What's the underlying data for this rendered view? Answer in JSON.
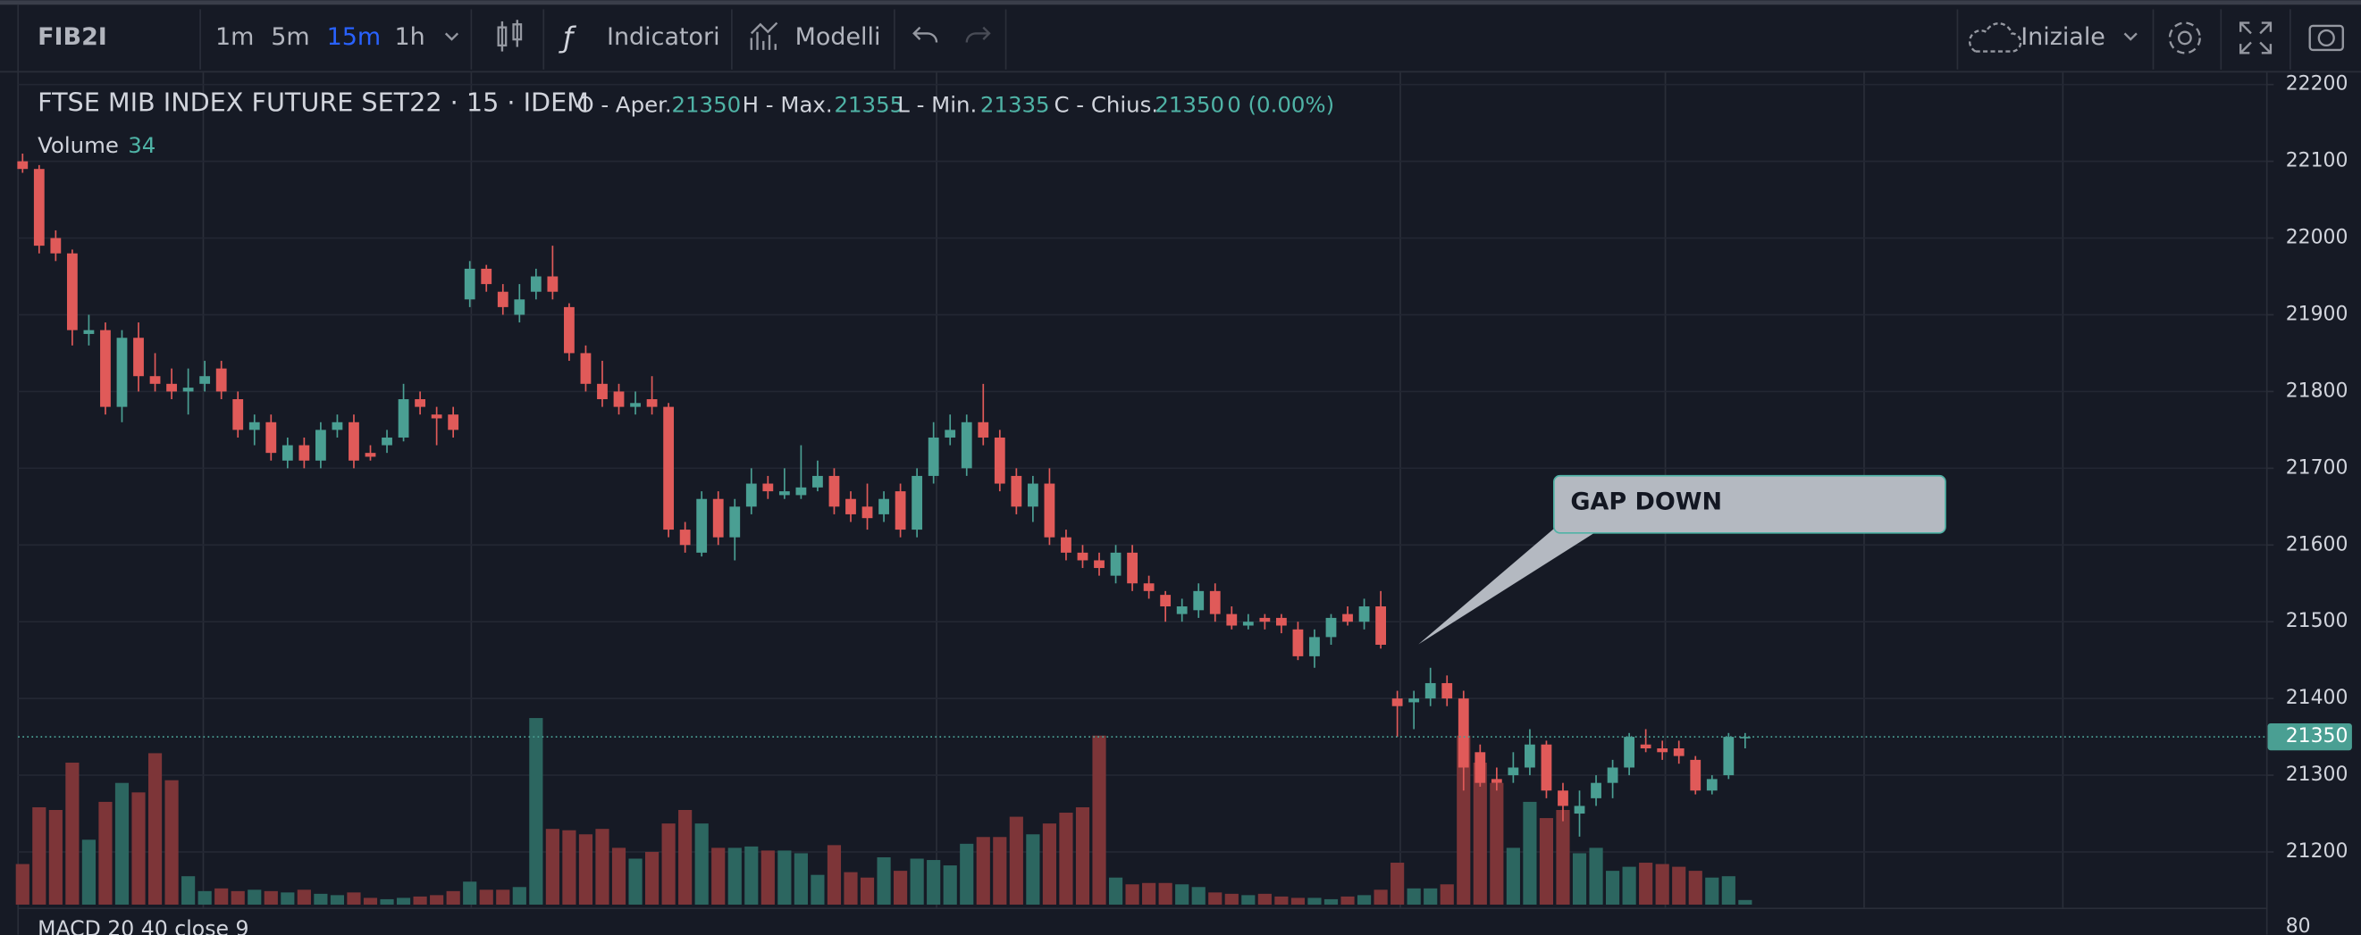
{
  "toolbar": {
    "symbol": "FIB2I",
    "intervals": [
      "1m",
      "5m",
      "15m",
      "1h"
    ],
    "active_interval": 2,
    "indicators": "Indicatori",
    "templates": "Modelli",
    "layout": "Iniziale"
  },
  "chart_data": {
    "type": "candlestick",
    "title": "FTSE MIB INDEX FUTURE SET22 · 15 · IDEM",
    "legend_labels": {
      "open": "O - Aper.",
      "high": "H - Max.",
      "low": "L - Min.",
      "close": "C - Chius.",
      "change": "0 (0.00%)"
    },
    "volume_label": "Volume",
    "annotation": "GAP DOWN",
    "up_color": "#4a9f93",
    "down_color": "#e05a59",
    "volume_up_color": "#2c6660",
    "volume_down_color": "#7d3538",
    "ylim": [
      21130,
      22250
    ],
    "yticks": [
      21200,
      21300,
      21400,
      21500,
      21600,
      21700,
      21800,
      21900,
      22000,
      22100,
      22200
    ],
    "grid": true,
    "open": [
      22100,
      22090,
      22000,
      21980,
      21875,
      21880,
      21780,
      21870,
      21820,
      21810,
      21800,
      21810,
      21830,
      21790,
      21750,
      21760,
      21710,
      21730,
      21710,
      21750,
      21760,
      21720,
      21730,
      21740,
      21790,
      21770,
      21770,
      21920,
      21960,
      21930,
      21900,
      21930,
      21950,
      21910,
      21850,
      21810,
      21800,
      21780,
      21790,
      21780,
      21620,
      21590,
      21660,
      21610,
      21650,
      21680,
      21665,
      21665,
      21675,
      21690,
      21660,
      21650,
      21640,
      21670,
      21620,
      21690,
      21740,
      21700,
      21760,
      21740,
      21690,
      21650,
      21680,
      21610,
      21590,
      21580,
      21560,
      21590,
      21550,
      21535,
      21510,
      21515,
      21540,
      21510,
      21495,
      21505,
      21505,
      21490,
      21455,
      21480,
      21510,
      21500,
      21520,
      21400,
      21395,
      21400,
      21420,
      21400,
      21330,
      21295,
      21300,
      21310,
      21340,
      21280,
      21250,
      21270,
      21290,
      21310,
      21340,
      21335,
      21335,
      21320,
      21280,
      21300,
      21350
    ],
    "high": [
      22110,
      22095,
      22010,
      21985,
      21900,
      21890,
      21880,
      21890,
      21850,
      21830,
      21830,
      21840,
      21840,
      21800,
      21770,
      21770,
      21740,
      21740,
      21760,
      21770,
      21770,
      21730,
      21750,
      21810,
      21800,
      21780,
      21780,
      21970,
      21965,
      21940,
      21940,
      21960,
      21990,
      21915,
      21860,
      21840,
      21810,
      21800,
      21820,
      21785,
      21630,
      21670,
      21670,
      21660,
      21700,
      21690,
      21700,
      21730,
      21710,
      21700,
      21670,
      21680,
      21670,
      21680,
      21700,
      21760,
      21770,
      21770,
      21810,
      21750,
      21700,
      21690,
      21700,
      21620,
      21600,
      21590,
      21600,
      21600,
      21560,
      21540,
      21530,
      21550,
      21550,
      21520,
      21510,
      21510,
      21510,
      21500,
      21490,
      21510,
      21520,
      21530,
      21540,
      21410,
      21410,
      21440,
      21430,
      21410,
      21340,
      21310,
      21330,
      21360,
      21345,
      21290,
      21280,
      21300,
      21320,
      21355,
      21360,
      21345,
      21345,
      21325,
      21300,
      21355,
      21355
    ],
    "low": [
      22085,
      21980,
      21970,
      21860,
      21860,
      21770,
      21760,
      21800,
      21800,
      21790,
      21770,
      21800,
      21790,
      21740,
      21730,
      21710,
      21700,
      21700,
      21700,
      21740,
      21700,
      21710,
      21720,
      21735,
      21770,
      21730,
      21740,
      21910,
      21930,
      21900,
      21890,
      21920,
      21920,
      21840,
      21800,
      21780,
      21770,
      21770,
      21770,
      21610,
      21590,
      21585,
      21600,
      21580,
      21640,
      21660,
      21660,
      21660,
      21670,
      21640,
      21630,
      21620,
      21630,
      21610,
      21610,
      21680,
      21730,
      21690,
      21730,
      21670,
      21640,
      21630,
      21600,
      21580,
      21570,
      21560,
      21550,
      21540,
      21530,
      21500,
      21500,
      21505,
      21500,
      21490,
      21490,
      21490,
      21485,
      21450,
      21440,
      21470,
      21495,
      21490,
      21465,
      21350,
      21360,
      21390,
      21390,
      21280,
      21285,
      21280,
      21290,
      21300,
      21270,
      21240,
      21220,
      21260,
      21270,
      21300,
      21330,
      21320,
      21315,
      21275,
      21275,
      21295,
      21335
    ],
    "close": [
      22090,
      21990,
      21980,
      21880,
      21880,
      21780,
      21870,
      21820,
      21810,
      21800,
      21805,
      21820,
      21800,
      21750,
      21760,
      21720,
      21730,
      21710,
      21750,
      21760,
      21710,
      21715,
      21740,
      21790,
      21780,
      21765,
      21750,
      21960,
      21940,
      21910,
      21920,
      21950,
      21930,
      21850,
      21810,
      21790,
      21780,
      21785,
      21780,
      21620,
      21600,
      21660,
      21610,
      21650,
      21680,
      21670,
      21670,
      21675,
      21690,
      21650,
      21640,
      21635,
      21660,
      21620,
      21690,
      21740,
      21750,
      21760,
      21740,
      21680,
      21650,
      21680,
      21610,
      21590,
      21580,
      21570,
      21590,
      21550,
      21540,
      21520,
      21520,
      21540,
      21510,
      21495,
      21500,
      21500,
      21495,
      21455,
      21480,
      21505,
      21500,
      21520,
      21470,
      21390,
      21400,
      21420,
      21400,
      21310,
      21290,
      21290,
      21310,
      21340,
      21280,
      21260,
      21260,
      21290,
      21310,
      21350,
      21335,
      21330,
      21325,
      21280,
      21295,
      21350,
      21350
    ],
    "volume": [
      300,
      720,
      700,
      1050,
      480,
      760,
      900,
      830,
      1120,
      920,
      210,
      100,
      120,
      100,
      110,
      100,
      90,
      110,
      80,
      70,
      90,
      50,
      40,
      50,
      60,
      70,
      100,
      170,
      110,
      110,
      130,
      1380,
      560,
      550,
      520,
      560,
      420,
      340,
      390,
      600,
      700,
      600,
      420,
      420,
      430,
      400,
      400,
      380,
      220,
      440,
      240,
      200,
      350,
      250,
      340,
      330,
      290,
      450,
      500,
      500,
      650,
      520,
      600,
      680,
      720,
      1250,
      200,
      150,
      160,
      160,
      150,
      130,
      90,
      80,
      70,
      80,
      60,
      50,
      50,
      40,
      60,
      70,
      110,
      310,
      120,
      120,
      150,
      1250,
      1050,
      900,
      420,
      760,
      640,
      700,
      380,
      420,
      250,
      280,
      310,
      300,
      280,
      250,
      200,
      210,
      34
    ]
  },
  "macd": {
    "label": "MACD 20 40 close 9",
    "ytick": 80
  }
}
